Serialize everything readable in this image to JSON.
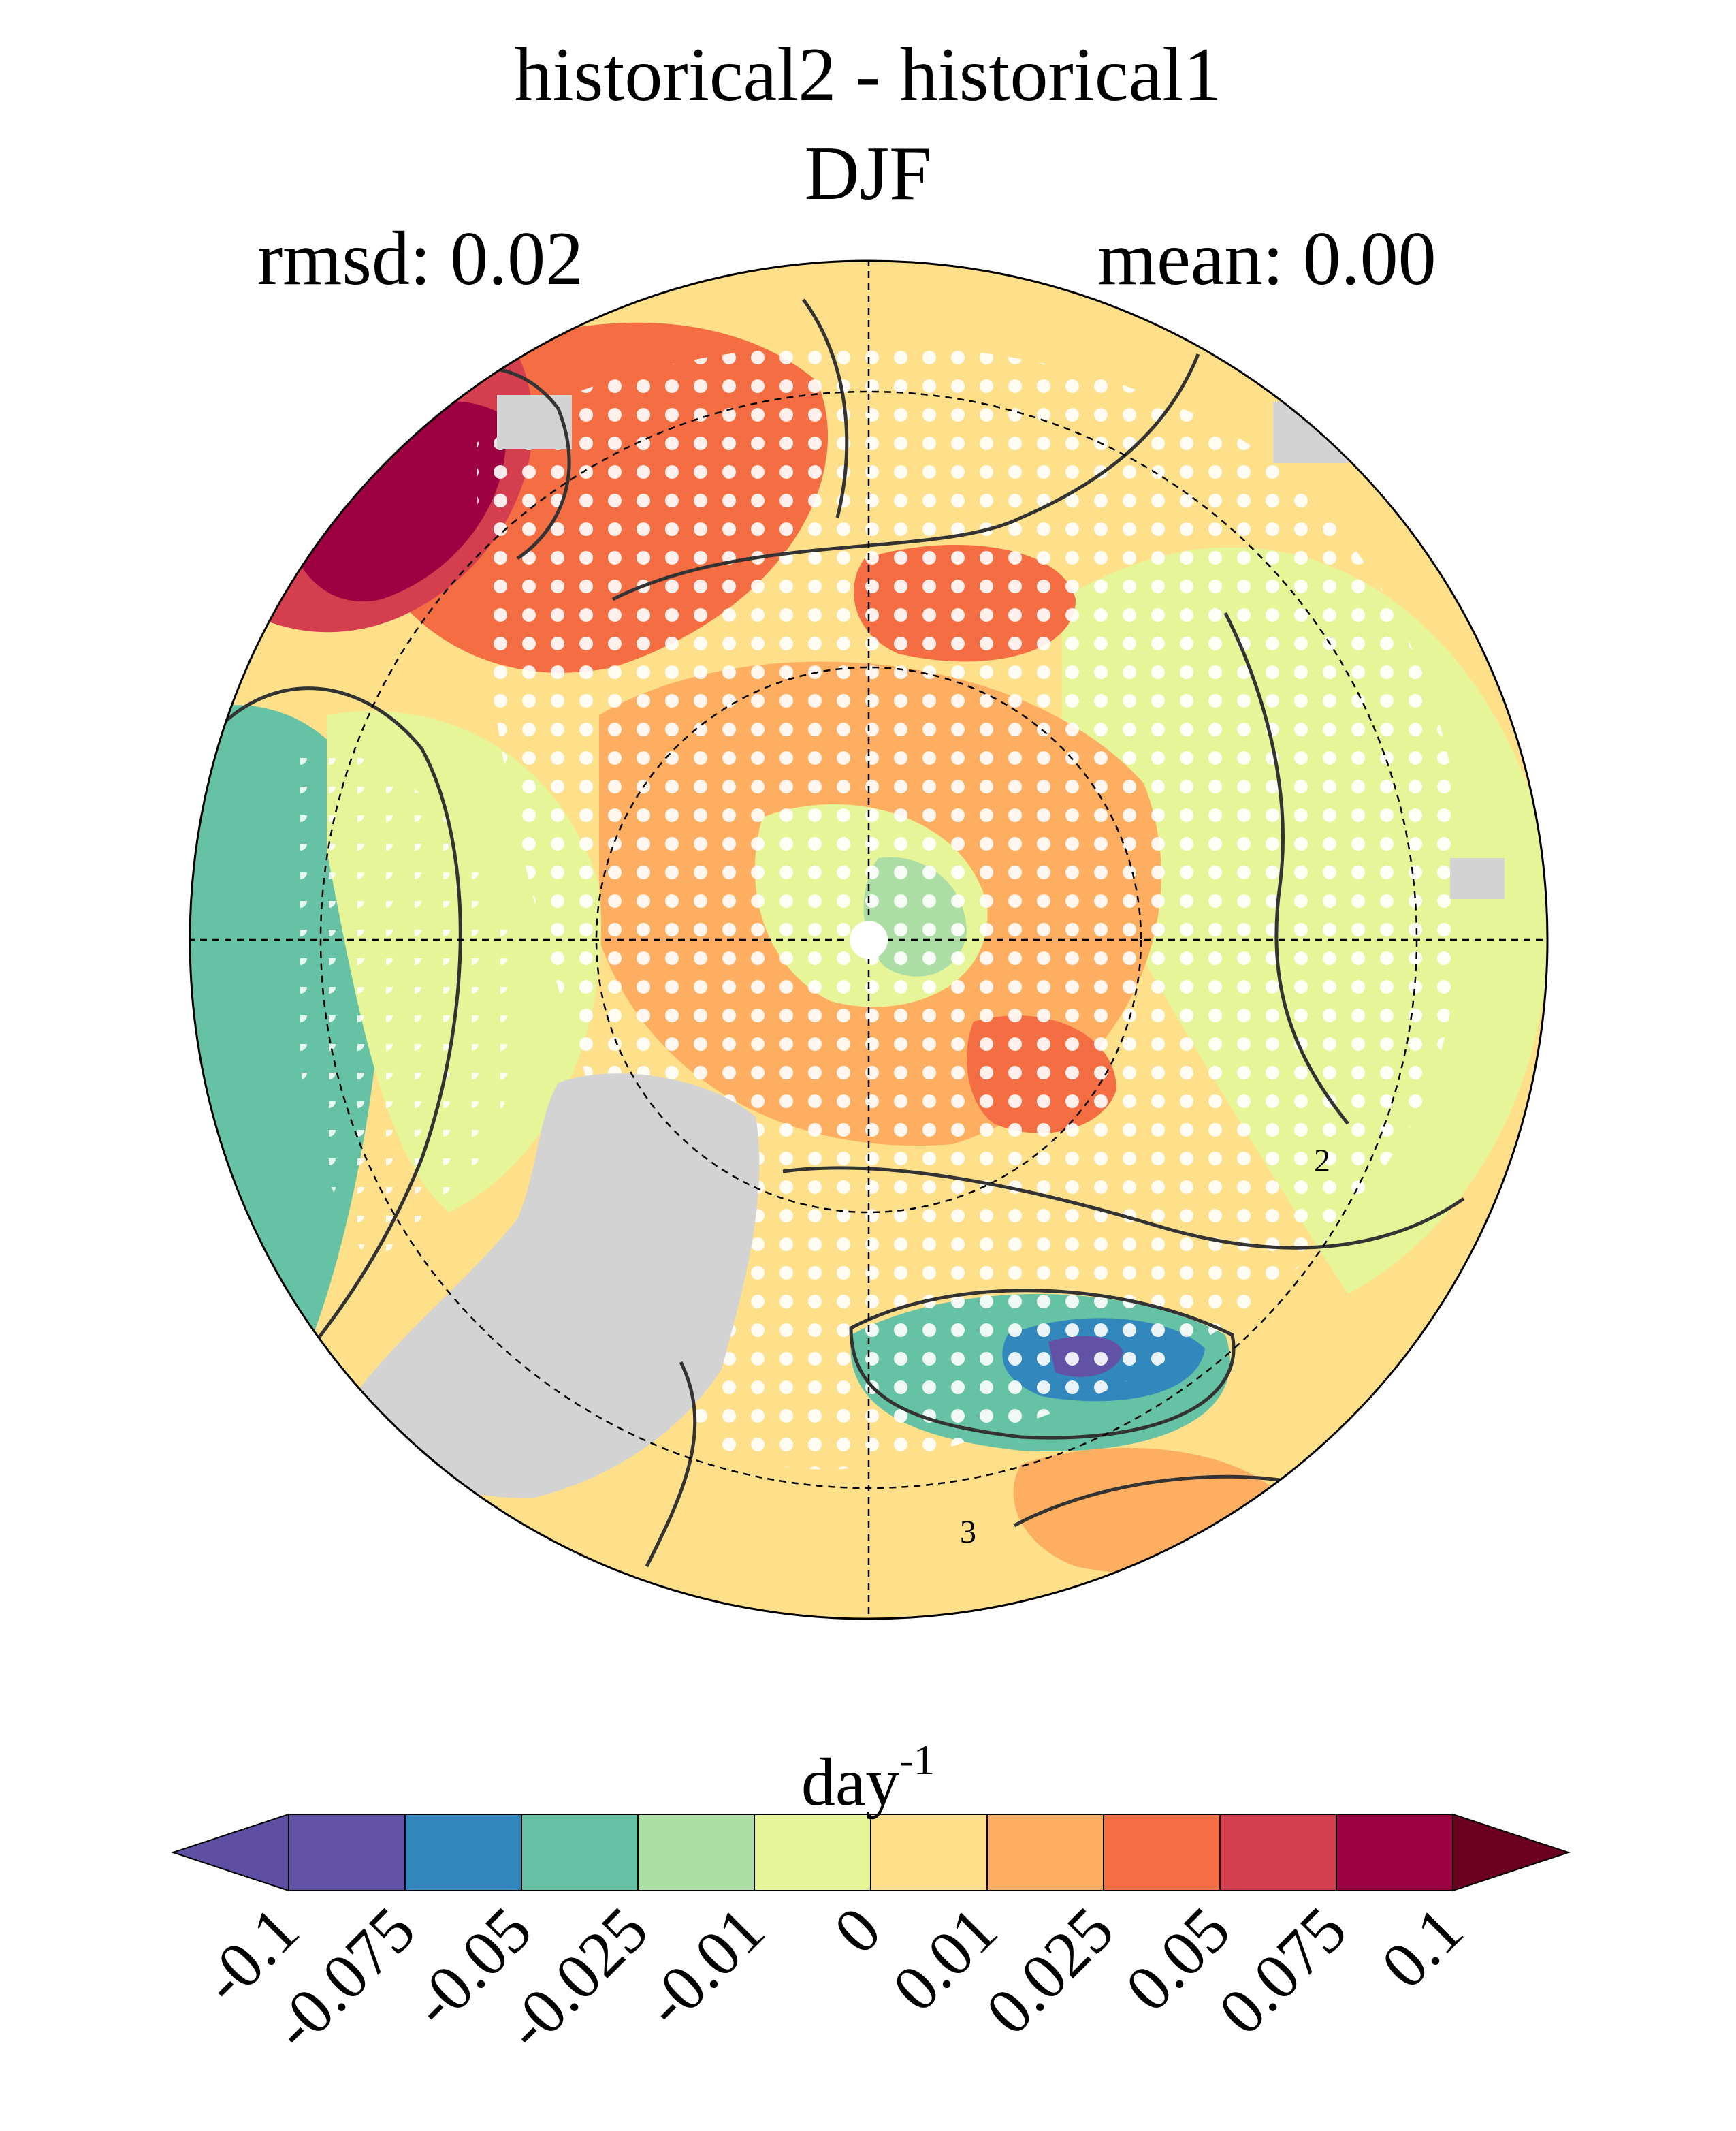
{
  "chart_data": {
    "type": "heatmap",
    "title": "historical2 - historical1",
    "subtitle": "DJF",
    "left_annotation": "rmsd: 0.02",
    "right_annotation": "mean: 0.00",
    "projection": "north-polar-stereographic",
    "colorbar": {
      "label": "day",
      "label_exponent": "-1",
      "orientation": "horizontal",
      "placement": "bottom",
      "extend": "both",
      "tick_labels": [
        "-0.1",
        "-0.075",
        "-0.05",
        "-0.025",
        "-0.01",
        "0",
        "0.01",
        "0.025",
        "0.05",
        "0.075",
        "0.1"
      ],
      "levels": [
        -0.1,
        -0.075,
        -0.05,
        -0.025,
        -0.01,
        0,
        0.01,
        0.025,
        0.05,
        0.075,
        0.1
      ],
      "colors": [
        "#5e4fa2",
        "#6252a6",
        "#3288bd",
        "#66c2a5",
        "#abdda4",
        "#e6f598",
        "#fee08b",
        "#fdae61",
        "#f46d43",
        "#d53e4f",
        "#9e0142",
        "#6b0021"
      ]
    },
    "contour_labels": [
      "2",
      "3"
    ],
    "missing_color": "#d3d3d3",
    "stipple_color": "#ffffff",
    "regions": [
      {
        "name": "north-atlantic-top-left",
        "value": 0.075
      },
      {
        "name": "nordic-seas",
        "value": 0.05
      },
      {
        "name": "central-arctic-pacific-side",
        "value": 0.025
      },
      {
        "name": "arctic-core",
        "value": 0.01
      },
      {
        "name": "north-pole",
        "value": -0.01
      },
      {
        "name": "eurasia-east",
        "value": 0.0
      },
      {
        "name": "north-america-west",
        "value": -0.05
      },
      {
        "name": "canada-interior",
        "value": -0.075
      },
      {
        "name": "siberia-east",
        "value": 0.025
      }
    ]
  }
}
